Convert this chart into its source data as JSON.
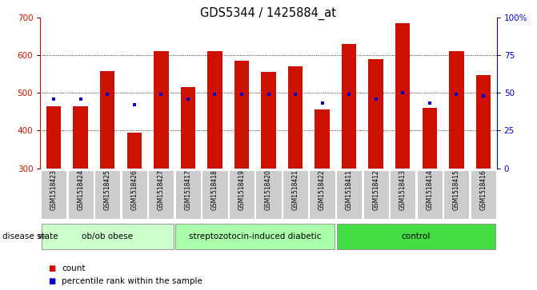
{
  "title": "GDS5344 / 1425884_at",
  "samples": [
    "GSM1518423",
    "GSM1518424",
    "GSM1518425",
    "GSM1518426",
    "GSM1518427",
    "GSM1518417",
    "GSM1518418",
    "GSM1518419",
    "GSM1518420",
    "GSM1518421",
    "GSM1518422",
    "GSM1518411",
    "GSM1518412",
    "GSM1518413",
    "GSM1518414",
    "GSM1518415",
    "GSM1518416"
  ],
  "counts": [
    465,
    465,
    558,
    395,
    610,
    515,
    610,
    585,
    555,
    570,
    455,
    630,
    590,
    685,
    460,
    610,
    548
  ],
  "percentiles": [
    46,
    46,
    49,
    42,
    49,
    46,
    49,
    49,
    49,
    49,
    43,
    49,
    46,
    50,
    43,
    49,
    48
  ],
  "groups": [
    {
      "label": "ob/ob obese",
      "start": 0,
      "end": 5,
      "color": "#ccffcc"
    },
    {
      "label": "streptozotocin-induced diabetic",
      "start": 5,
      "end": 11,
      "color": "#aaffaa"
    },
    {
      "label": "control",
      "start": 11,
      "end": 17,
      "color": "#44dd44"
    }
  ],
  "ymin": 300,
  "ymax": 700,
  "yticks_left": [
    300,
    400,
    500,
    600,
    700
  ],
  "yticks_right": [
    0,
    25,
    50,
    75,
    100
  ],
  "bar_color": "#cc1100",
  "percentile_color": "#0000cc",
  "bar_width": 0.55,
  "title_fontsize": 10.5,
  "tick_label_fontsize": 5.5,
  "group_label_fontsize": 7.5,
  "legend_fontsize": 7.5,
  "axis_tick_fontsize": 7.5
}
